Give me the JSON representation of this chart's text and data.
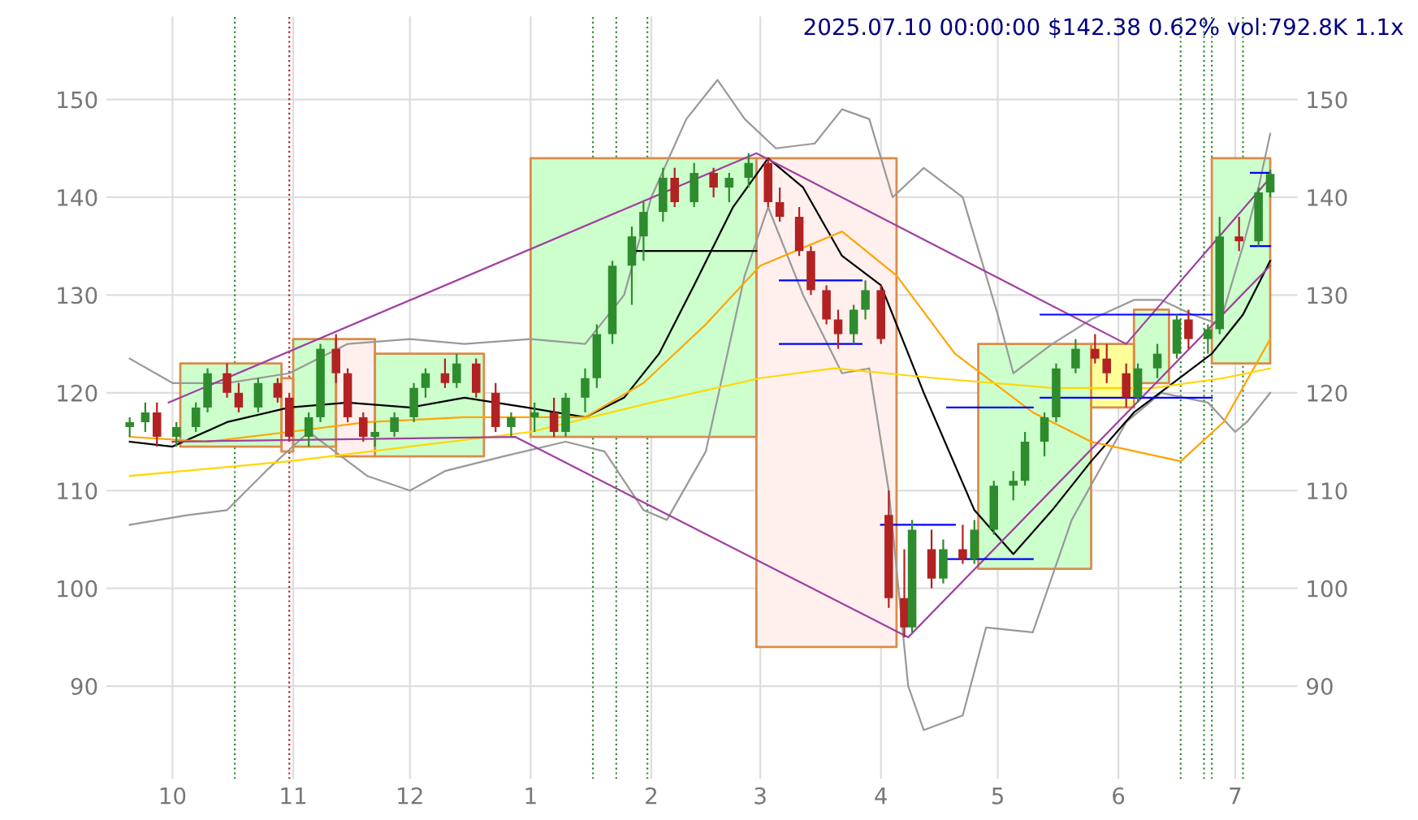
{
  "chart_data": {
    "type": "candlestick",
    "title": "2025.07.10 00:00:00 $142.38 0.62% vol:792.8K 1.1x",
    "x": [
      "2024-09-20",
      "2024-09-24",
      "2024-09-27",
      "2024-10-02",
      "2024-10-07",
      "2024-10-10",
      "2024-10-15",
      "2024-10-18",
      "2024-10-23",
      "2024-10-28",
      "2024-10-31",
      "2024-11-05",
      "2024-11-08",
      "2024-11-12",
      "2024-11-15",
      "2024-11-19",
      "2024-11-22",
      "2024-11-27",
      "2024-12-02",
      "2024-12-05",
      "2024-12-10",
      "2024-12-13",
      "2024-12-18",
      "2024-12-23",
      "2024-12-27",
      "2025-01-02",
      "2025-01-07",
      "2025-01-10",
      "2025-01-15",
      "2025-01-18",
      "2025-01-22",
      "2025-01-27",
      "2025-01-30",
      "2025-02-04",
      "2025-02-07",
      "2025-02-12",
      "2025-02-17",
      "2025-02-21",
      "2025-02-26",
      "2025-03-03",
      "2025-03-06",
      "2025-03-11",
      "2025-03-14",
      "2025-03-18",
      "2025-03-21",
      "2025-03-25",
      "2025-03-28",
      "2025-04-01",
      "2025-04-03",
      "2025-04-07",
      "2025-04-09",
      "2025-04-14",
      "2025-04-17",
      "2025-04-22",
      "2025-04-25",
      "2025-04-30",
      "2025-05-05",
      "2025-05-08",
      "2025-05-13",
      "2025-05-16",
      "2025-05-21",
      "2025-05-26",
      "2025-05-29",
      "2025-06-03",
      "2025-06-06",
      "2025-06-11",
      "2025-06-16",
      "2025-06-19",
      "2025-06-24",
      "2025-06-27",
      "2025-07-02",
      "2025-07-07",
      "2025-07-10"
    ],
    "ohlc": [
      [
        116.5,
        117.5,
        115.5,
        117
      ],
      [
        117,
        119,
        116,
        118
      ],
      [
        118,
        119,
        114.5,
        115.5
      ],
      [
        115.5,
        117,
        114.5,
        116.5
      ],
      [
        116.5,
        119,
        116,
        118.5
      ],
      [
        118.5,
        122.5,
        118,
        122
      ],
      [
        122,
        123,
        119.5,
        120
      ],
      [
        120,
        121,
        118,
        118.5
      ],
      [
        118.5,
        121.5,
        118,
        121
      ],
      [
        121,
        121.5,
        119,
        119.5
      ],
      [
        119.5,
        120,
        115,
        115.5
      ],
      [
        115.5,
        118,
        114.5,
        117.5
      ],
      [
        117.5,
        125,
        117,
        124.5
      ],
      [
        124.5,
        126,
        121,
        122
      ],
      [
        122,
        122.5,
        117,
        117.5
      ],
      [
        117.5,
        118,
        115,
        115.5
      ],
      [
        115.5,
        117,
        114.5,
        116
      ],
      [
        116,
        118,
        115.5,
        117.5
      ],
      [
        117.5,
        121,
        117,
        120.5
      ],
      [
        120.5,
        122.5,
        119.5,
        122
      ],
      [
        122,
        123.5,
        120.5,
        121
      ],
      [
        121,
        124,
        120.5,
        123
      ],
      [
        123,
        123.5,
        119.5,
        120
      ],
      [
        120,
        121,
        116,
        116.5
      ],
      [
        116.5,
        118,
        115.5,
        117.5
      ],
      [
        117.5,
        119,
        116,
        118
      ],
      [
        118,
        119.5,
        115.5,
        116
      ],
      [
        116,
        120,
        115.5,
        119.5
      ],
      [
        119.5,
        122.5,
        118,
        121.5
      ],
      [
        121.5,
        127,
        120.5,
        126
      ],
      [
        126,
        133.5,
        125,
        133
      ],
      [
        133,
        137,
        129,
        136
      ],
      [
        136,
        139.5,
        133.5,
        138.5
      ],
      [
        138.5,
        143,
        137.5,
        142
      ],
      [
        142,
        143,
        139,
        139.5
      ],
      [
        139.5,
        143.5,
        139,
        142.5
      ],
      [
        142.5,
        143,
        140,
        141
      ],
      [
        141,
        142.5,
        139.5,
        142
      ],
      [
        142,
        144.5,
        141,
        143.5
      ],
      [
        143.5,
        144,
        139,
        139.5
      ],
      [
        139.5,
        141,
        137.5,
        138
      ],
      [
        138,
        139,
        134,
        134.5
      ],
      [
        134.5,
        135,
        130,
        130.5
      ],
      [
        130.5,
        131,
        127,
        127.5
      ],
      [
        127.5,
        128.5,
        124.5,
        126
      ],
      [
        126,
        129,
        125,
        128.5
      ],
      [
        128.5,
        131.5,
        127.5,
        130.5
      ],
      [
        130.5,
        131,
        125,
        125.5
      ],
      [
        107.5,
        110,
        98,
        99
      ],
      [
        99,
        104,
        95,
        96
      ],
      [
        96,
        107,
        95.5,
        106
      ],
      [
        104,
        106,
        100,
        101
      ],
      [
        101,
        105,
        100.5,
        104
      ],
      [
        104,
        106.5,
        102.5,
        103
      ],
      [
        103,
        107,
        102.5,
        106
      ],
      [
        106,
        111,
        105.5,
        110.5
      ],
      [
        110.5,
        112,
        109,
        111
      ],
      [
        111,
        116,
        110.5,
        115
      ],
      [
        115,
        118,
        113.5,
        117.5
      ],
      [
        117.5,
        123,
        117,
        122.5
      ],
      [
        122.5,
        125.5,
        122,
        124.5
      ],
      [
        124.5,
        126,
        123,
        123.5
      ],
      [
        123.5,
        125,
        121,
        122
      ],
      [
        122,
        123,
        118.5,
        119.5
      ],
      [
        119.5,
        123,
        119,
        122.5
      ],
      [
        122.5,
        125,
        121.5,
        124
      ],
      [
        124,
        128,
        123.5,
        127.5
      ],
      [
        127.5,
        128.5,
        124.5,
        125.5
      ],
      [
        125.5,
        127,
        124,
        126.5
      ],
      [
        126.5,
        138,
        126,
        136
      ],
      [
        136,
        138,
        134.5,
        135.5
      ],
      [
        135.5,
        141,
        135,
        140.5
      ],
      [
        140.5,
        142.8,
        140,
        142.38
      ]
    ],
    "series": [
      {
        "type": "area",
        "color": "#ccffcc",
        "x": [
          "2024-10-03",
          "2024-10-03",
          "2024-10-29",
          "2024-10-29"
        ],
        "values": [
          114.5,
          123,
          123,
          114.5
        ]
      },
      {
        "type": "area",
        "color": "#fff0ee",
        "x": [
          "2024-10-29",
          "2024-10-29",
          "2024-11-01",
          "2024-11-01"
        ],
        "values": [
          114,
          121.5,
          121.5,
          114
        ]
      },
      {
        "type": "area",
        "color": "#ccffcc",
        "x": [
          "2024-11-01",
          "2024-11-01",
          "2024-11-12",
          "2024-11-12"
        ],
        "values": [
          114.5,
          125.5,
          125.5,
          114.5
        ]
      },
      {
        "type": "area",
        "color": "#fff0ee",
        "x": [
          "2024-11-12",
          "2024-11-12",
          "2024-11-22",
          "2024-11-22"
        ],
        "values": [
          113.5,
          125.5,
          125.5,
          113.5
        ]
      },
      {
        "type": "area",
        "color": "#ccffcc",
        "x": [
          "2024-11-22",
          "2024-11-22",
          "2024-12-20",
          "2024-12-20"
        ],
        "values": [
          113.5,
          124,
          124,
          113.5
        ]
      },
      {
        "type": "area",
        "color": "#ccffcc",
        "x": [
          "2025-01-01",
          "2025-01-01",
          "2025-02-28",
          "2025-02-28"
        ],
        "values": [
          115.5,
          144,
          144,
          115.5
        ]
      },
      {
        "type": "area",
        "color": "#fff0ee",
        "x": [
          "2025-02-28",
          "2025-02-28",
          "2025-04-05",
          "2025-04-05"
        ],
        "values": [
          94,
          144,
          144,
          94
        ]
      },
      {
        "type": "area",
        "color": "#ccffcc",
        "x": [
          "2025-04-26",
          "2025-04-26",
          "2025-05-25",
          "2025-05-25"
        ],
        "values": [
          102,
          125,
          125,
          102
        ]
      },
      {
        "type": "area",
        "color": "#ffff99",
        "x": [
          "2025-05-25",
          "2025-05-25",
          "2025-06-05",
          "2025-06-05"
        ],
        "values": [
          118.5,
          125,
          125,
          118.5
        ]
      },
      {
        "type": "area",
        "color": "#ccffcc",
        "x": [
          "2025-06-05",
          "2025-06-05",
          "2025-06-14",
          "2025-06-14"
        ],
        "values": [
          121,
          128.5,
          128.5,
          121
        ]
      },
      {
        "type": "area",
        "color": "#ccffcc",
        "x": [
          "2025-06-25",
          "2025-06-25",
          "2025-07-10",
          "2025-07-10"
        ],
        "values": [
          123,
          144,
          144,
          123
        ]
      },
      {
        "type": "line",
        "color": "#999999",
        "x": [
          "2024-09-20",
          "2024-10-01",
          "2024-10-15",
          "2024-10-31",
          "2024-11-15",
          "2024-12-01",
          "2024-12-15",
          "2025-01-01",
          "2025-01-15",
          "2025-01-25",
          "2025-02-01",
          "2025-02-10",
          "2025-02-18",
          "2025-02-25",
          "2025-03-05",
          "2025-03-15",
          "2025-03-22",
          "2025-03-29",
          "2025-04-04",
          "2025-04-12",
          "2025-04-22",
          "2025-05-01",
          "2025-05-05",
          "2025-05-15",
          "2025-05-25",
          "2025-06-05",
          "2025-06-12",
          "2025-06-20",
          "2025-06-27",
          "2025-07-03",
          "2025-07-07",
          "2025-07-10"
        ],
        "values": [
          123.5,
          121,
          121,
          122,
          125,
          125.5,
          125,
          125.5,
          125,
          130,
          140,
          148,
          152,
          148,
          145,
          145.5,
          149,
          148,
          140,
          143,
          140,
          128,
          122,
          125,
          127.5,
          129.5,
          129.5,
          128,
          127,
          135,
          141,
          146.5
        ]
      },
      {
        "type": "line",
        "color": "#999999",
        "x": [
          "2024-09-20",
          "2024-10-05",
          "2024-10-15",
          "2024-10-25",
          "2024-11-05",
          "2024-11-20",
          "2024-12-01",
          "2024-12-10",
          "2024-12-25",
          "2025-01-10",
          "2025-01-20",
          "2025-01-30",
          "2025-02-05",
          "2025-02-15",
          "2025-02-25",
          "2025-03-03",
          "2025-03-12",
          "2025-03-22",
          "2025-03-29",
          "2025-04-03",
          "2025-04-08",
          "2025-04-12",
          "2025-04-22",
          "2025-04-28",
          "2025-05-10",
          "2025-05-20",
          "2025-06-03",
          "2025-06-12",
          "2025-06-24",
          "2025-07-01",
          "2025-07-04",
          "2025-07-10"
        ],
        "values": [
          106.5,
          107.5,
          108,
          112,
          116,
          111.5,
          110,
          112,
          113.5,
          115,
          114,
          108,
          107,
          114,
          132,
          139,
          130,
          122,
          122.5,
          110,
          90,
          85.5,
          87,
          96,
          95.5,
          107,
          117,
          120,
          119,
          116,
          117,
          120
        ]
      },
      {
        "type": "line",
        "color": "#000000",
        "x": [
          "2024-09-20",
          "2024-10-01",
          "2024-10-15",
          "2024-10-31",
          "2024-11-15",
          "2024-12-01",
          "2024-12-15",
          "2024-12-31",
          "2025-01-15",
          "2025-01-25",
          "2025-02-03",
          "2025-02-12",
          "2025-02-22",
          "2025-03-03",
          "2025-03-12",
          "2025-03-22",
          "2025-04-01",
          "2025-04-12",
          "2025-04-25",
          "2025-05-05",
          "2025-05-15",
          "2025-05-25",
          "2025-06-05",
          "2025-06-15",
          "2025-06-25",
          "2025-07-03",
          "2025-07-10"
        ],
        "values": [
          115,
          114.5,
          117,
          118.5,
          119,
          118.5,
          119.5,
          118.5,
          117.5,
          119.5,
          124,
          131,
          139,
          144,
          141,
          134,
          131,
          120,
          108,
          103.5,
          108,
          113,
          118,
          121,
          124,
          128,
          133.5
        ]
      },
      {
        "type": "line",
        "color": "#ffa500",
        "x": [
          "2024-09-20",
          "2024-10-10",
          "2024-10-31",
          "2024-11-20",
          "2024-12-15",
          "2025-01-15",
          "2025-01-30",
          "2025-02-15",
          "2025-03-01",
          "2025-03-22",
          "2025-04-05",
          "2025-04-20",
          "2025-05-10",
          "2025-05-25",
          "2025-06-17",
          "2025-06-28",
          "2025-07-10"
        ],
        "values": [
          115.5,
          115,
          116,
          117,
          117.5,
          117.5,
          121,
          127,
          133,
          136.5,
          132,
          124,
          118,
          115,
          113,
          117,
          125.5
        ]
      },
      {
        "type": "line",
        "color": "#ffd700",
        "x": [
          "2024-09-20",
          "2024-10-31",
          "2024-12-01",
          "2025-01-01",
          "2025-02-01",
          "2025-03-01",
          "2025-03-20",
          "2025-04-15",
          "2025-05-15",
          "2025-06-10",
          "2025-06-28",
          "2025-07-10"
        ],
        "values": [
          111.5,
          113,
          114.5,
          116,
          119,
          121.5,
          122.5,
          121.5,
          120.5,
          120.5,
          121.5,
          122.5
        ]
      },
      {
        "type": "line",
        "color": "#a040a0",
        "x": [
          "2024-09-30",
          "2025-02-28",
          "2025-06-03",
          "2025-07-10"
        ],
        "values": [
          119,
          144.5,
          125,
          142
        ]
      },
      {
        "type": "line",
        "color": "#a040a0",
        "x": [
          "2024-10-01",
          "2024-12-28",
          "2025-04-08",
          "2025-07-10"
        ],
        "values": [
          115,
          115.5,
          95,
          133
        ]
      },
      {
        "type": "line",
        "color": "#000000",
        "x": [
          "2025-01-27",
          "2025-02-28"
        ],
        "values": [
          134.5,
          134.5
        ]
      },
      {
        "type": "line",
        "color": "#0000ff",
        "x": [
          "2025-03-06",
          "2025-03-27"
        ],
        "values": [
          131.5,
          131.5
        ]
      },
      {
        "type": "line",
        "color": "#0000ff",
        "x": [
          "2025-03-06",
          "2025-03-27"
        ],
        "values": [
          125,
          125
        ]
      },
      {
        "type": "line",
        "color": "#0000ff",
        "x": [
          "2025-04-01",
          "2025-04-20"
        ],
        "values": [
          106.5,
          106.5
        ]
      },
      {
        "type": "line",
        "color": "#0000ff",
        "x": [
          "2025-04-18",
          "2025-05-10"
        ],
        "values": [
          118.5,
          118.5
        ]
      },
      {
        "type": "line",
        "color": "#0000ff",
        "x": [
          "2025-04-18",
          "2025-05-10"
        ],
        "values": [
          103,
          103
        ]
      },
      {
        "type": "line",
        "color": "#0000ff",
        "x": [
          "2025-05-12",
          "2025-06-25"
        ],
        "values": [
          128,
          128
        ]
      },
      {
        "type": "line",
        "color": "#0000ff",
        "x": [
          "2025-05-12",
          "2025-06-25"
        ],
        "values": [
          119.5,
          119.5
        ]
      },
      {
        "type": "line",
        "color": "#0000ff",
        "x": [
          "2025-07-05",
          "2025-07-10"
        ],
        "values": [
          142.5,
          142.5
        ]
      },
      {
        "type": "line",
        "color": "#0000ff",
        "x": [
          "2025-07-05",
          "2025-07-10"
        ],
        "values": [
          135,
          135
        ]
      }
    ],
    "ref_lines": [
      {
        "axis": "x",
        "value": "2024-10-17",
        "color": "#2e8b2e",
        "line_style": "dotted"
      },
      {
        "axis": "x",
        "value": "2024-10-31",
        "color": "#b22222",
        "line_style": "dotted"
      },
      {
        "axis": "x",
        "value": "2025-01-17",
        "color": "#2e8b2e",
        "line_style": "dotted"
      },
      {
        "axis": "x",
        "value": "2025-01-23",
        "color": "#2e8b2e",
        "line_style": "dotted"
      },
      {
        "axis": "x",
        "value": "2025-01-31",
        "color": "#2e8b2e",
        "line_style": "dotted"
      },
      {
        "axis": "x",
        "value": "2025-06-17",
        "color": "#2e8b2e",
        "line_style": "dotted"
      },
      {
        "axis": "x",
        "value": "2025-06-23",
        "color": "#2e8b2e",
        "line_style": "dotted"
      },
      {
        "axis": "x",
        "value": "2025-06-25",
        "color": "#2e8b2e",
        "line_style": "dotted"
      },
      {
        "axis": "x",
        "value": "2025-07-03",
        "color": "#2e8b2e",
        "line_style": "dotted"
      }
    ],
    "xlim": [
      "2024-09-14",
      "2025-07-17"
    ],
    "xticks": [
      {
        "value": "2024-10-01",
        "label": "10"
      },
      {
        "value": "2024-11-01",
        "label": "11"
      },
      {
        "value": "2024-12-01",
        "label": "12"
      },
      {
        "value": "2025-01-01",
        "label": "1"
      },
      {
        "value": "2025-02-01",
        "label": "2"
      },
      {
        "value": "2025-03-01",
        "label": "3"
      },
      {
        "value": "2025-04-01",
        "label": "4"
      },
      {
        "value": "2025-05-01",
        "label": "5"
      },
      {
        "value": "2025-06-01",
        "label": "6"
      },
      {
        "value": "2025-07-01",
        "label": "7"
      }
    ],
    "ylim": [
      80.5,
      158.5
    ],
    "yticks": [
      90,
      100,
      110,
      120,
      130,
      140,
      150
    ],
    "y2lim": [
      80.5,
      158.5
    ],
    "y2ticks": [
      90,
      100,
      110,
      120,
      130,
      140,
      150
    ],
    "grid": true
  }
}
